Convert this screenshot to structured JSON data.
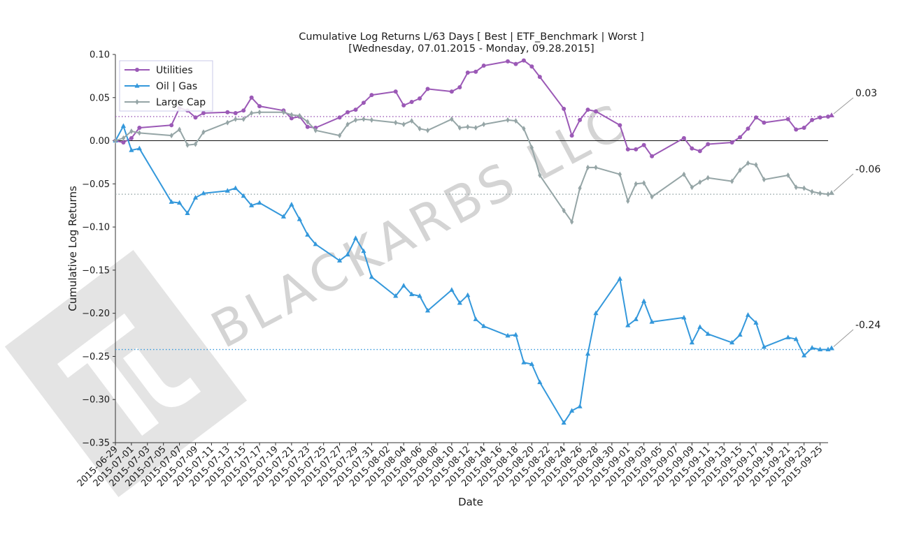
{
  "chart_data": {
    "type": "line",
    "title_lines": [
      "Cumulative Log Returns L/63 Days [ Best | ETF_Benchmark | Worst ]",
      "[Wednesday, 07.01.2015 - Monday, 09.28.2015]"
    ],
    "xlabel": "Date",
    "ylabel": "Cumulative Log Returns",
    "ylim": [
      -0.35,
      0.1
    ],
    "yticks": [
      0.1,
      0.05,
      0.0,
      -0.05,
      -0.1,
      -0.15,
      -0.2,
      -0.25,
      -0.3,
      -0.35
    ],
    "ytick_labels": [
      "0.10",
      "0.05",
      "0.00",
      "−0.05",
      "−0.10",
      "−0.15",
      "−0.20",
      "−0.25",
      "−0.30",
      "−0.35"
    ],
    "xlim": [
      "2015-06-29",
      "2015-09-26"
    ],
    "xticks": [
      "2015-06-29",
      "2015-07-01",
      "2015-07-03",
      "2015-07-05",
      "2015-07-07",
      "2015-07-09",
      "2015-07-11",
      "2015-07-13",
      "2015-07-15",
      "2015-07-17",
      "2015-07-19",
      "2015-07-21",
      "2015-07-23",
      "2015-07-25",
      "2015-07-27",
      "2015-07-29",
      "2015-07-31",
      "2015-08-02",
      "2015-08-04",
      "2015-08-06",
      "2015-08-08",
      "2015-08-10",
      "2015-08-12",
      "2015-08-14",
      "2015-08-16",
      "2015-08-18",
      "2015-08-20",
      "2015-08-22",
      "2015-08-24",
      "2015-08-26",
      "2015-08-28",
      "2015-08-30",
      "2015-09-01",
      "2015-09-03",
      "2015-09-05",
      "2015-09-07",
      "2015-09-09",
      "2015-09-11",
      "2015-09-13",
      "2015-09-15",
      "2015-09-17",
      "2015-09-19",
      "2015-09-21",
      "2015-09-23",
      "2015-09-25"
    ],
    "legend_placement": "top-left",
    "grid": false,
    "watermark": "BLACKARBS LLC",
    "zero_line": 0.0,
    "dates": [
      "2015-06-29",
      "2015-06-30",
      "2015-07-01",
      "2015-07-02",
      "2015-07-06",
      "2015-07-07",
      "2015-07-08",
      "2015-07-09",
      "2015-07-10",
      "2015-07-13",
      "2015-07-14",
      "2015-07-15",
      "2015-07-16",
      "2015-07-17",
      "2015-07-20",
      "2015-07-21",
      "2015-07-22",
      "2015-07-23",
      "2015-07-24",
      "2015-07-27",
      "2015-07-28",
      "2015-07-29",
      "2015-07-30",
      "2015-07-31",
      "2015-08-03",
      "2015-08-04",
      "2015-08-05",
      "2015-08-06",
      "2015-08-07",
      "2015-08-10",
      "2015-08-11",
      "2015-08-12",
      "2015-08-13",
      "2015-08-14",
      "2015-08-17",
      "2015-08-18",
      "2015-08-19",
      "2015-08-20",
      "2015-08-21",
      "2015-08-24",
      "2015-08-25",
      "2015-08-26",
      "2015-08-27",
      "2015-08-28",
      "2015-08-31",
      "2015-09-01",
      "2015-09-02",
      "2015-09-03",
      "2015-09-04",
      "2015-09-08",
      "2015-09-09",
      "2015-09-10",
      "2015-09-11",
      "2015-09-14",
      "2015-09-15",
      "2015-09-16",
      "2015-09-17",
      "2015-09-18",
      "2015-09-21",
      "2015-09-22",
      "2015-09-23",
      "2015-09-24",
      "2015-09-25",
      "2015-09-26"
    ],
    "series": [
      {
        "name": "Utilities",
        "color": "#9b59b6",
        "marker": "circle",
        "last_label": "0.03",
        "values": [
          0.0,
          -0.002,
          0.003,
          0.015,
          0.018,
          0.038,
          0.035,
          0.027,
          0.032,
          0.033,
          0.032,
          0.035,
          0.05,
          0.04,
          0.035,
          0.026,
          0.028,
          0.016,
          0.015,
          0.027,
          0.033,
          0.036,
          0.044,
          0.053,
          0.057,
          0.041,
          0.045,
          0.049,
          0.06,
          0.057,
          0.062,
          0.079,
          0.08,
          0.087,
          0.092,
          0.089,
          0.093,
          0.086,
          0.074,
          0.037,
          0.006,
          0.024,
          0.036,
          0.034,
          0.018,
          -0.01,
          -0.01,
          -0.005,
          -0.018,
          0.003,
          -0.009,
          -0.012,
          -0.004,
          -0.002,
          0.004,
          0.014,
          0.027,
          0.021,
          0.025,
          0.013,
          0.015,
          0.024,
          0.027,
          0.028
        ]
      },
      {
        "name": "Oil | Gas",
        "color": "#3498db",
        "marker": "triangle",
        "last_label": "-0.24",
        "values": [
          0.0,
          0.017,
          -0.011,
          -0.009,
          -0.071,
          -0.072,
          -0.084,
          -0.066,
          -0.061,
          -0.058,
          -0.055,
          -0.064,
          -0.075,
          -0.072,
          -0.088,
          -0.074,
          -0.091,
          -0.109,
          -0.12,
          -0.139,
          -0.132,
          -0.113,
          -0.128,
          -0.158,
          -0.18,
          -0.168,
          -0.178,
          -0.18,
          -0.197,
          -0.173,
          -0.188,
          -0.179,
          -0.207,
          -0.215,
          -0.226,
          -0.225,
          -0.257,
          -0.259,
          -0.28,
          -0.327,
          -0.313,
          -0.308,
          -0.247,
          -0.2,
          -0.16,
          -0.214,
          -0.207,
          -0.186,
          -0.21,
          -0.205,
          -0.234,
          -0.216,
          -0.224,
          -0.234,
          -0.225,
          -0.202,
          -0.211,
          -0.239,
          -0.228,
          -0.23,
          -0.249,
          -0.24,
          -0.242,
          -0.242
        ]
      },
      {
        "name": "Large Cap",
        "color": "#95a5a6",
        "marker": "diamond",
        "last_label": "-0.06",
        "values": [
          0.0,
          0.003,
          0.011,
          0.009,
          0.006,
          0.013,
          -0.005,
          -0.004,
          0.01,
          0.021,
          0.025,
          0.025,
          0.032,
          0.033,
          0.033,
          0.03,
          0.029,
          0.022,
          0.012,
          0.006,
          0.019,
          0.024,
          0.025,
          0.024,
          0.021,
          0.019,
          0.023,
          0.014,
          0.012,
          0.025,
          0.015,
          0.016,
          0.015,
          0.019,
          0.024,
          0.023,
          0.014,
          -0.008,
          -0.04,
          -0.081,
          -0.094,
          -0.055,
          -0.031,
          -0.031,
          -0.039,
          -0.07,
          -0.05,
          -0.049,
          -0.065,
          -0.039,
          -0.054,
          -0.048,
          -0.043,
          -0.047,
          -0.034,
          -0.026,
          -0.028,
          -0.045,
          -0.04,
          -0.054,
          -0.055,
          -0.059,
          -0.061,
          -0.062
        ]
      }
    ]
  }
}
